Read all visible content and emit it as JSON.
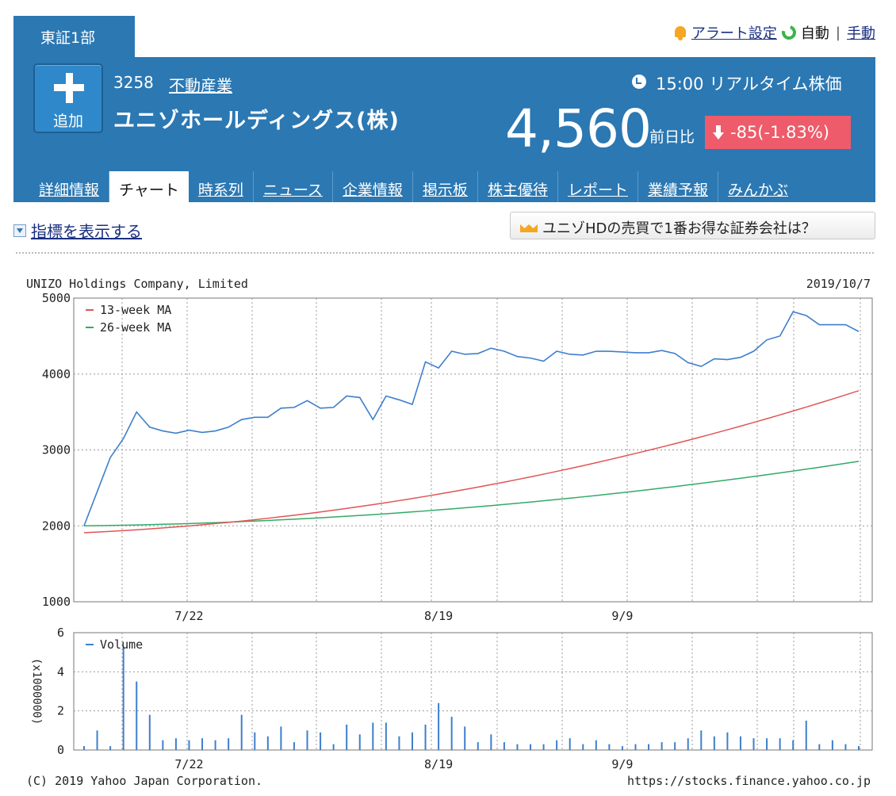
{
  "market": {
    "label": "東証1部"
  },
  "top_links": {
    "alert": "アラート設定",
    "auto": "自動",
    "manual": "手動"
  },
  "stock": {
    "add_label": "追加",
    "code": "3258",
    "industry": "不動産業",
    "name": "ユニゾホールディングス(株)",
    "realtime_label": "15:00 リアルタイム株価",
    "price": "4,560",
    "prev_label": "前日比",
    "change": "-85(-1.83%)"
  },
  "nav": {
    "items": [
      {
        "label": "詳細情報"
      },
      {
        "label": "チャート"
      },
      {
        "label": "時系列"
      },
      {
        "label": "ニュース"
      },
      {
        "label": "企業情報"
      },
      {
        "label": "掲示板"
      },
      {
        "label": "株主優待"
      },
      {
        "label": "レポート"
      },
      {
        "label": "業績予報"
      },
      {
        "label": "みんかぶ"
      }
    ],
    "active_index": 1
  },
  "toolbar": {
    "indicator_toggle": "指標を表示する",
    "promo": "ユニゾHDの売買で1番お得な証券会社は？"
  },
  "colors": {
    "header": "#2b78b3",
    "change_down": "#ee5b6a",
    "price_line": "#3d7fcc",
    "ma13": "#e05555",
    "ma26": "#33aa66",
    "volume": "#3d7fcc"
  },
  "chart_data": [
    {
      "type": "line",
      "title": "UNIZO Holdings Company, Limited",
      "date_label": "2019/10/7",
      "x_tick_labels": [
        "7/22",
        "8/19",
        "9/9"
      ],
      "x_tick_index": [
        8,
        27,
        41
      ],
      "ylim": [
        1000,
        5000
      ],
      "y_ticks": [
        1000,
        2000,
        3000,
        4000,
        5000
      ],
      "grid": true,
      "legend_position": "top-left",
      "series": [
        {
          "name": "",
          "values": [
            2000,
            2450,
            2900,
            3150,
            3500,
            3300,
            3250,
            3220,
            3260,
            3230,
            3250,
            3300,
            3400,
            3430,
            3430,
            3550,
            3560,
            3650,
            3550,
            3560,
            3710,
            3690,
            3400,
            3710,
            3660,
            3600,
            4160,
            4080,
            4300,
            4260,
            4270,
            4340,
            4300,
            4230,
            4210,
            4170,
            4300,
            4260,
            4250,
            4300,
            4300,
            4290,
            4280,
            4280,
            4310,
            4270,
            4150,
            4100,
            4200,
            4190,
            4220,
            4300,
            4450,
            4500,
            4820,
            4770,
            4650,
            4650,
            4650,
            4560
          ]
        },
        {
          "name": "13-week MA",
          "start": 1910,
          "end": 3780,
          "shape": 0.75
        },
        {
          "name": "26-week MA",
          "start": 2000,
          "end": 2850,
          "shape": 0.85
        }
      ]
    },
    {
      "type": "bar",
      "legend": "Volume",
      "ylabel": "(x1000000)",
      "ylim": [
        0,
        6
      ],
      "y_ticks": [
        0,
        2,
        4,
        6
      ],
      "x_tick_labels": [
        "7/22",
        "8/19",
        "9/9"
      ],
      "values": [
        0.2,
        1.0,
        0.2,
        5.3,
        3.5,
        1.8,
        0.5,
        0.6,
        0.5,
        0.6,
        0.5,
        0.6,
        1.8,
        0.9,
        0.7,
        1.2,
        0.4,
        1.0,
        0.9,
        0.3,
        1.3,
        0.8,
        1.4,
        1.4,
        0.7,
        0.9,
        1.3,
        2.4,
        1.7,
        1.2,
        0.4,
        0.8,
        0.4,
        0.3,
        0.3,
        0.3,
        0.5,
        0.6,
        0.3,
        0.5,
        0.3,
        0.2,
        0.3,
        0.3,
        0.4,
        0.4,
        0.6,
        1.0,
        0.7,
        0.9,
        0.7,
        0.6,
        0.6,
        0.6,
        0.5,
        1.5,
        0.3,
        0.5,
        0.3,
        0.2
      ]
    }
  ],
  "footer": {
    "copyright": "(C) 2019 Yahoo Japan Corporation.",
    "url": "https://stocks.finance.yahoo.co.jp"
  }
}
